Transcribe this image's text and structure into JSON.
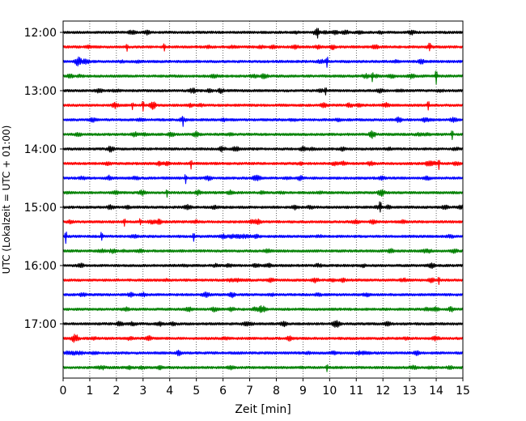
{
  "chart_data": {
    "type": "line",
    "title": "",
    "xlabel": "Zeit  [min]",
    "ylabel": "UTC (Lokalzeit = UTC + 01:00)",
    "xlim": [
      0,
      15
    ],
    "x_ticks": [
      0,
      1,
      2,
      3,
      4,
      5,
      6,
      7,
      8,
      9,
      10,
      11,
      12,
      13,
      14,
      15
    ],
    "y_tick_labels": [
      "12:00",
      "13:00",
      "14:00",
      "15:00",
      "16:00",
      "17:00"
    ],
    "y_tick_rows": [
      0,
      4,
      8,
      12,
      16,
      20
    ],
    "grid": "vertical dotted",
    "row_minutes": 15,
    "colors": [
      "#000000",
      "#ff0000",
      "#0000ff",
      "#008000"
    ],
    "traces": [
      {
        "start": "12:00",
        "color": "#000000",
        "spikes": [
          [
            9.55,
            9
          ]
        ]
      },
      {
        "start": "12:15",
        "color": "#ff0000",
        "spikes": [
          [
            2.4,
            5
          ],
          [
            3.8,
            6
          ],
          [
            13.75,
            6
          ]
        ]
      },
      {
        "start": "12:30",
        "color": "#0000ff",
        "spikes": [
          [
            9.9,
            10
          ]
        ]
      },
      {
        "start": "12:45",
        "color": "#008000",
        "spikes": [
          [
            11.6,
            5
          ],
          [
            14.0,
            9
          ]
        ]
      },
      {
        "start": "13:00",
        "color": "#000000",
        "spikes": [
          [
            9.85,
            4
          ]
        ]
      },
      {
        "start": "13:15",
        "color": "#ff0000",
        "spikes": [
          [
            2.6,
            5
          ],
          [
            3.0,
            6
          ],
          [
            13.7,
            7
          ]
        ]
      },
      {
        "start": "13:30",
        "color": "#0000ff",
        "spikes": [
          [
            4.5,
            5
          ]
        ]
      },
      {
        "start": "13:45",
        "color": "#008000",
        "spikes": [
          [
            14.6,
            6
          ]
        ]
      },
      {
        "start": "14:00",
        "color": "#000000",
        "spikes": []
      },
      {
        "start": "14:15",
        "color": "#ff0000",
        "spikes": [
          [
            4.8,
            6
          ],
          [
            14.1,
            6
          ]
        ]
      },
      {
        "start": "14:30",
        "color": "#0000ff",
        "spikes": [
          [
            4.6,
            6
          ]
        ]
      },
      {
        "start": "14:45",
        "color": "#008000",
        "spikes": [
          [
            3.9,
            4
          ]
        ]
      },
      {
        "start": "15:00",
        "color": "#000000",
        "spikes": [
          [
            11.9,
            8
          ]
        ]
      },
      {
        "start": "15:15",
        "color": "#ff0000",
        "spikes": [
          [
            2.3,
            5
          ],
          [
            2.9,
            5
          ]
        ]
      },
      {
        "start": "15:30",
        "color": "#0000ff",
        "spikes": [
          [
            0.1,
            9
          ],
          [
            1.45,
            7
          ],
          [
            4.9,
            5
          ]
        ]
      },
      {
        "start": "15:45",
        "color": "#008000",
        "spikes": []
      },
      {
        "start": "16:00",
        "color": "#000000",
        "spikes": []
      },
      {
        "start": "16:15",
        "color": "#ff0000",
        "spikes": [
          [
            14.1,
            4
          ]
        ]
      },
      {
        "start": "16:30",
        "color": "#0000ff",
        "spikes": []
      },
      {
        "start": "16:45",
        "color": "#008000",
        "spikes": []
      },
      {
        "start": "17:00",
        "color": "#000000",
        "spikes": []
      },
      {
        "start": "17:15",
        "color": "#ff0000",
        "spikes": []
      },
      {
        "start": "17:30",
        "color": "#0000ff",
        "spikes": []
      },
      {
        "start": "17:45",
        "color": "#008000",
        "spikes": [
          [
            9.9,
            5
          ]
        ]
      }
    ]
  }
}
